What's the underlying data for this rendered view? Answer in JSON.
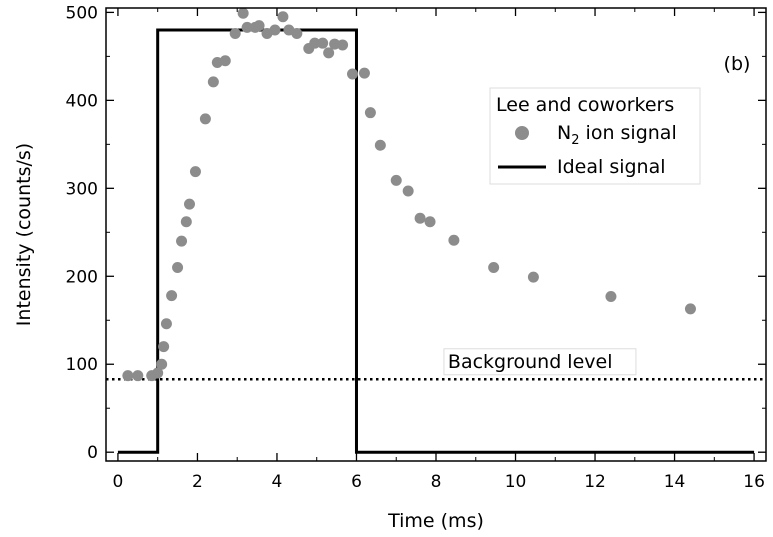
{
  "chart_data": {
    "type": "scatter",
    "xlabel": "Time (ms)",
    "ylabel": "Intensity (counts/s)",
    "xlim": [
      -0.3,
      16.3
    ],
    "ylim": [
      -10,
      505
    ],
    "xticks": [
      0,
      2,
      4,
      6,
      8,
      10,
      12,
      14,
      16
    ],
    "yticks": [
      0,
      100,
      200,
      300,
      400,
      500
    ],
    "grid": false,
    "panel_label": "(b)",
    "legend": {
      "placement": "top-right",
      "title": "Lee and coworkers",
      "entries": [
        {
          "label": "N",
          "subscript": "2",
          "suffix": " ion signal",
          "marker": "circle",
          "color": "#8c8c8c"
        },
        {
          "label": "Ideal signal",
          "marker": "line",
          "color": "#000000"
        }
      ]
    },
    "series": [
      {
        "name": "N2 ion signal",
        "kind": "scatter",
        "color": "#8c8c8c",
        "points": [
          [
            0.25,
            87
          ],
          [
            0.5,
            87
          ],
          [
            0.85,
            87
          ],
          [
            1.0,
            90
          ],
          [
            1.1,
            100
          ],
          [
            1.15,
            120
          ],
          [
            1.22,
            146
          ],
          [
            1.35,
            178
          ],
          [
            1.5,
            210
          ],
          [
            1.6,
            240
          ],
          [
            1.72,
            262
          ],
          [
            1.8,
            282
          ],
          [
            1.95,
            319
          ],
          [
            2.2,
            379
          ],
          [
            2.4,
            421
          ],
          [
            2.5,
            443
          ],
          [
            2.7,
            445
          ],
          [
            2.95,
            476
          ],
          [
            3.15,
            499
          ],
          [
            3.25,
            483
          ],
          [
            3.45,
            483
          ],
          [
            3.55,
            485
          ],
          [
            3.75,
            476
          ],
          [
            3.95,
            480
          ],
          [
            4.15,
            495
          ],
          [
            4.3,
            480
          ],
          [
            4.5,
            476
          ],
          [
            4.8,
            459
          ],
          [
            4.95,
            465
          ],
          [
            5.15,
            465
          ],
          [
            5.3,
            454
          ],
          [
            5.45,
            464
          ],
          [
            5.65,
            463
          ],
          [
            5.9,
            430
          ],
          [
            6.2,
            431
          ],
          [
            6.35,
            386
          ],
          [
            6.6,
            349
          ],
          [
            7.0,
            309
          ],
          [
            7.3,
            297
          ],
          [
            7.6,
            266
          ],
          [
            7.85,
            262
          ],
          [
            8.45,
            241
          ],
          [
            9.45,
            210
          ],
          [
            10.45,
            199
          ],
          [
            12.4,
            177
          ],
          [
            14.4,
            163
          ]
        ]
      },
      {
        "name": "Ideal signal",
        "kind": "step",
        "color": "#000000",
        "points": [
          [
            0,
            0
          ],
          [
            1,
            0
          ],
          [
            1,
            480
          ],
          [
            6,
            480
          ],
          [
            6,
            0
          ],
          [
            16,
            0
          ]
        ]
      }
    ],
    "annotations": [
      {
        "text": "Background level",
        "kind": "hline",
        "y": 83,
        "style": "dotted",
        "label_x": 8.3,
        "label_y": 96
      }
    ]
  }
}
